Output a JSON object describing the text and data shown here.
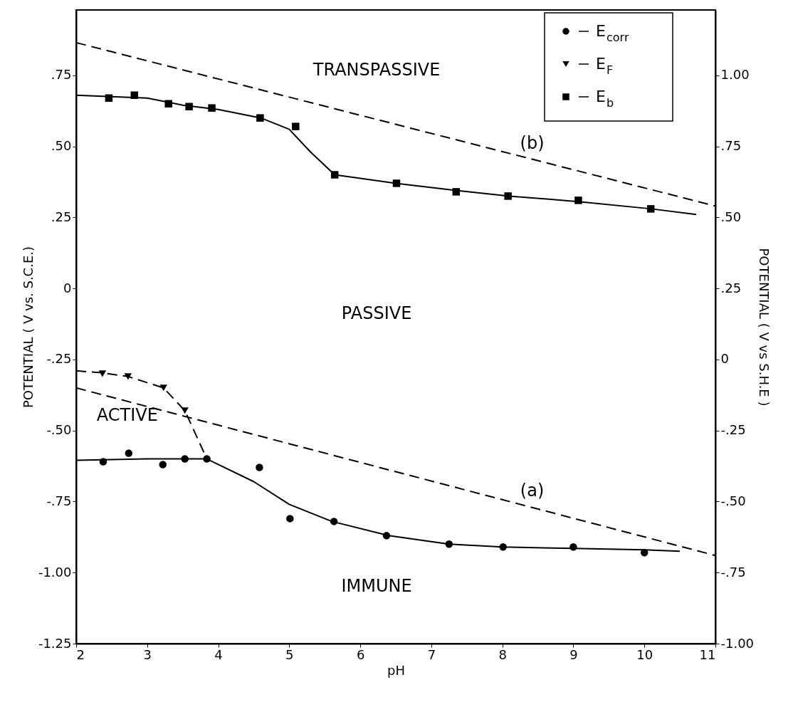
{
  "chart_data": {
    "type": "scatter",
    "xlabel": "pH",
    "ylabel": "POTENTIAL ( V vs. S.C.E.)",
    "y2label": "POTENTIAL ( V vs S.H.E )",
    "xlim": [
      2,
      11
    ],
    "xticks": [
      2,
      3,
      4,
      5,
      6,
      7,
      8,
      9,
      10,
      11
    ],
    "ylim": [
      -1.25,
      0.98
    ],
    "yticks": [
      {
        "value": 0.75,
        "label": ".75"
      },
      {
        "value": 0.5,
        "label": ".50"
      },
      {
        "value": 0.25,
        "label": ".25"
      },
      {
        "value": 0,
        "label": "0"
      },
      {
        "value": -0.25,
        "label": "-.25"
      },
      {
        "value": -0.5,
        "label": "-.50"
      },
      {
        "value": -0.75,
        "label": "-.75"
      },
      {
        "value": -1.0,
        "label": "-1.00"
      },
      {
        "value": -1.25,
        "label": "-1.25"
      }
    ],
    "y2lim": [
      -1.0,
      1.23
    ],
    "y2ticks": [
      {
        "value": 1.0,
        "label": "1.00"
      },
      {
        "value": 0.75,
        "label": ".75"
      },
      {
        "value": 0.5,
        "label": ".50"
      },
      {
        "value": 0.25,
        "label": ".25"
      },
      {
        "value": 0,
        "label": "0"
      },
      {
        "value": -0.25,
        "label": "-.25"
      },
      {
        "value": -0.5,
        "label": "-.50"
      },
      {
        "value": -0.75,
        "label": "-.75"
      },
      {
        "value": -1.0,
        "label": "-1.00"
      }
    ],
    "grid": false,
    "legend": "top right",
    "series": [
      {
        "name": "E$_{corr}$",
        "marker": "circle",
        "color": "#000000",
        "x": [
          2.38,
          2.74,
          3.22,
          3.53,
          3.84,
          4.58,
          5.01,
          5.63,
          6.37,
          7.25,
          8.01,
          9.0,
          10.0
        ],
        "values": [
          -0.61,
          -0.58,
          -0.62,
          -0.6,
          -0.6,
          -0.63,
          -0.81,
          -0.82,
          -0.87,
          -0.9,
          -0.91,
          -0.91,
          -0.93
        ]
      },
      {
        "name": "E$_{F}$",
        "marker": "triangle",
        "color": "#000000",
        "x": [
          2.37,
          2.73,
          3.23,
          3.53
        ],
        "values": [
          -0.3,
          -0.31,
          -0.35,
          -0.43
        ]
      },
      {
        "name": "E$_{b}$",
        "marker": "square",
        "color": "#000000",
        "x": [
          2.46,
          2.82,
          3.3,
          3.59,
          3.91,
          4.59,
          5.09,
          5.64,
          6.51,
          7.35,
          8.08,
          9.07,
          10.09
        ],
        "values": [
          0.67,
          0.68,
          0.65,
          0.64,
          0.635,
          0.6,
          0.57,
          0.4,
          0.37,
          0.34,
          0.325,
          0.31,
          0.28
        ]
      },
      {
        "type": "line",
        "line_style": "solid",
        "marker": "none",
        "color": "#000000",
        "x": [
          2.0,
          3.0,
          3.84,
          4.5,
          5.0,
          5.6,
          6.4,
          7.25,
          8.0,
          9.0,
          10.0,
          10.5
        ],
        "values": [
          -0.605,
          -0.6,
          -0.6,
          -0.68,
          -0.76,
          -0.82,
          -0.87,
          -0.9,
          -0.91,
          -0.915,
          -0.92,
          -0.925
        ]
      },
      {
        "type": "line",
        "line_style": "dashed",
        "marker": "none",
        "color": "#000000",
        "x": [
          2.0,
          2.37,
          2.73,
          3.23,
          3.53,
          3.84
        ],
        "values": [
          -0.29,
          -0.297,
          -0.31,
          -0.35,
          -0.43,
          -0.6
        ]
      },
      {
        "type": "line",
        "line_style": "solid",
        "marker": "none",
        "color": "#000000",
        "x": [
          2.0,
          2.5,
          3.0,
          3.5,
          4.0,
          4.6,
          5.0,
          5.3,
          5.64,
          6.5,
          7.35,
          8.1,
          9.1,
          10.1,
          10.73
        ],
        "values": [
          0.68,
          0.675,
          0.67,
          0.645,
          0.63,
          0.6,
          0.56,
          0.48,
          0.4,
          0.37,
          0.345,
          0.325,
          0.305,
          0.28,
          0.26
        ]
      },
      {
        "type": "line",
        "line_style": "dashed",
        "marker": "none",
        "color": "#000000",
        "x": [
          2.0,
          11.0
        ],
        "values": [
          -0.35,
          -0.94
        ]
      },
      {
        "type": "line",
        "line_style": "dashed",
        "marker": "none",
        "color": "#000000",
        "x": [
          2.0,
          11.0
        ],
        "values": [
          0.865,
          0.29
        ]
      }
    ],
    "annotations": [
      "TRANSPASSIVE",
      "PASSIVE",
      "ACTIVE",
      "IMMUNE",
      {
        "text": "(b)",
        "x": 8.42,
        "y": 0.455
      },
      {
        "text": "(a)",
        "x": 8.42,
        "y": -0.77
      }
    ]
  }
}
